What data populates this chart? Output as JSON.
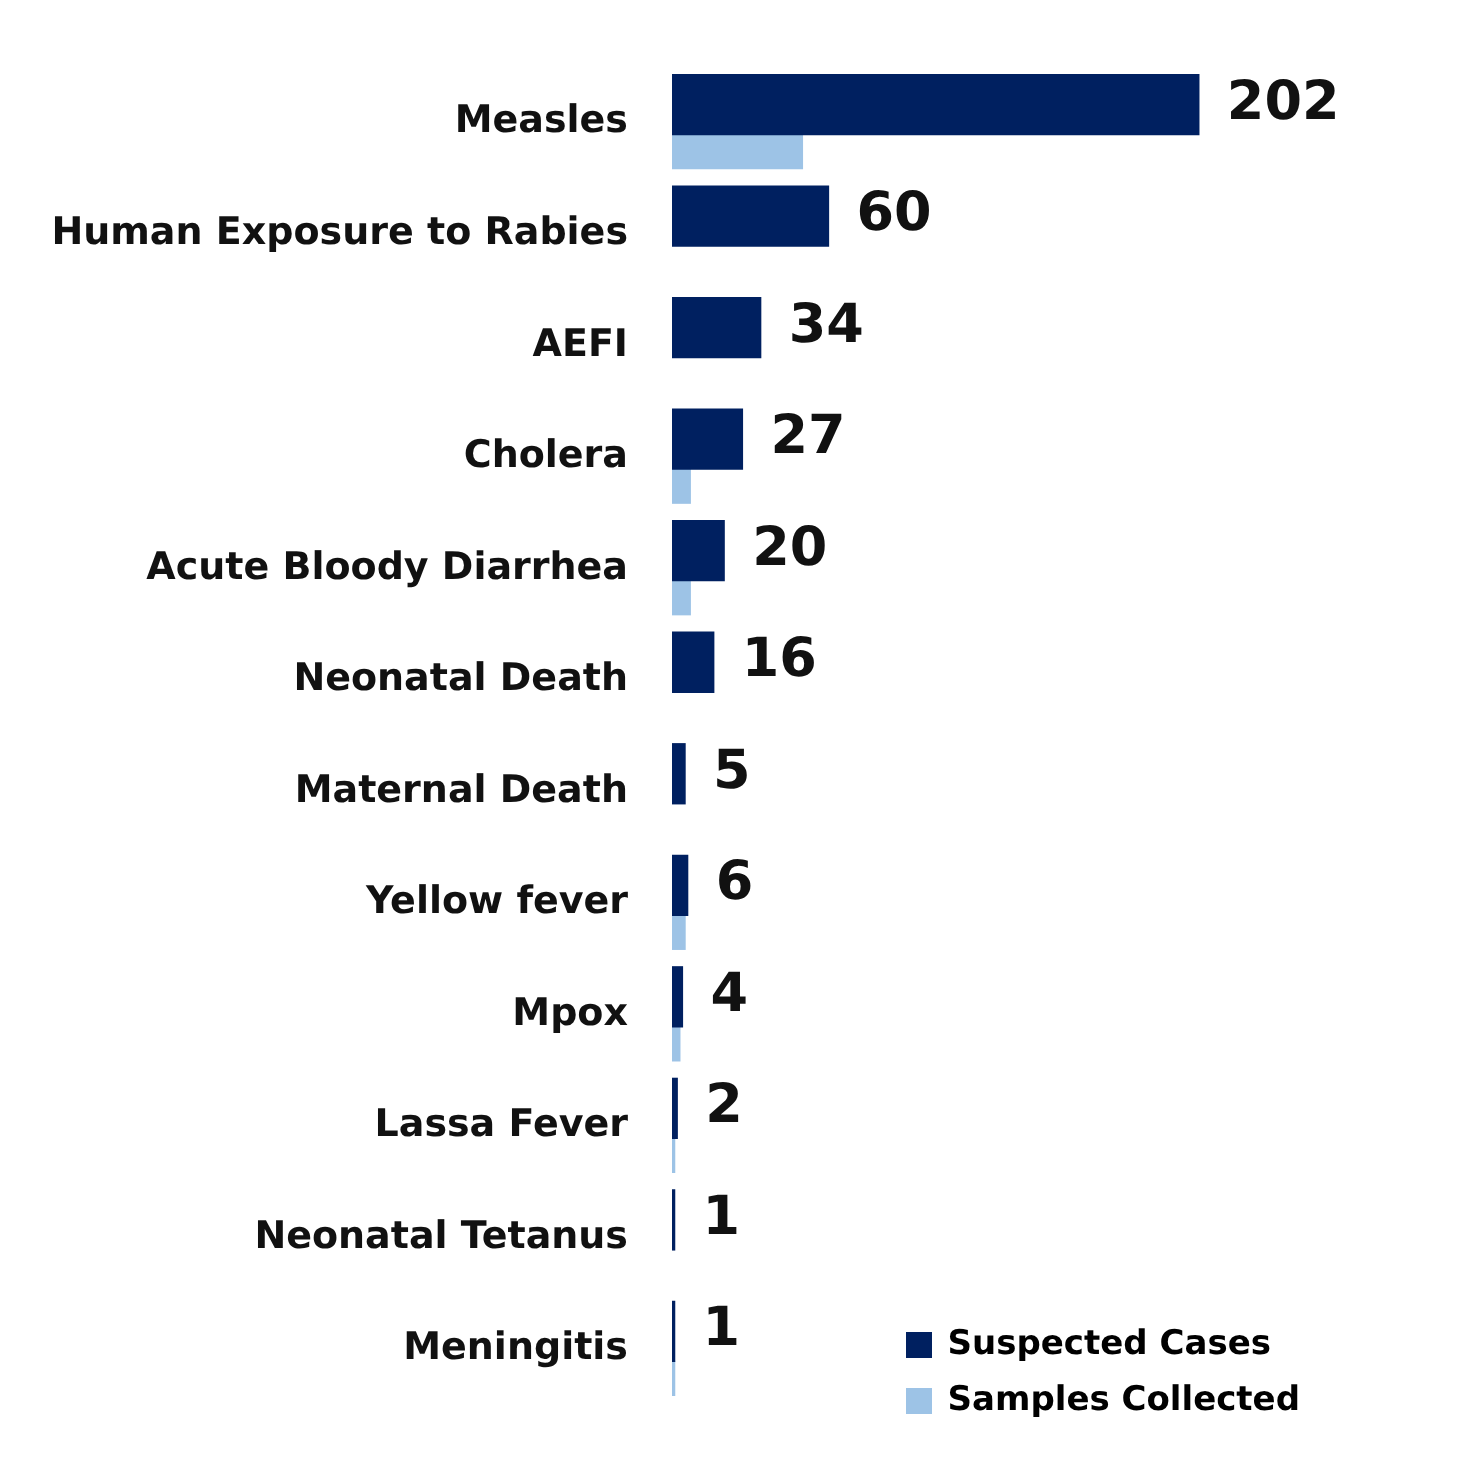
{
  "chart_data": {
    "type": "bar",
    "orientation": "horizontal",
    "categories": [
      "Measles",
      "Human Exposure to Rabies",
      "AEFI",
      "Cholera",
      "Acute Bloody Diarrhea",
      "Neonatal Death",
      "Maternal Death",
      "Yellow fever",
      "Mpox",
      "Lassa Fever",
      "Neonatal Tetanus",
      "Meningitis"
    ],
    "series": [
      {
        "name": "Suspected Cases",
        "color": "#002060",
        "values": [
          202,
          60,
          34,
          27,
          20,
          16,
          5,
          6,
          4,
          2,
          1,
          1
        ],
        "value_labels": [
          "202",
          "60",
          "34",
          "27",
          "20",
          "16",
          "5",
          "6",
          "4",
          "2",
          "1",
          "1"
        ]
      },
      {
        "name": "Samples Collected",
        "color": "#9dc3e6",
        "values": [
          50,
          null,
          null,
          7,
          7,
          null,
          null,
          5,
          3,
          1,
          null,
          1
        ]
      }
    ],
    "legend": "bottom right",
    "grid": false,
    "tick_labels": "y"
  }
}
